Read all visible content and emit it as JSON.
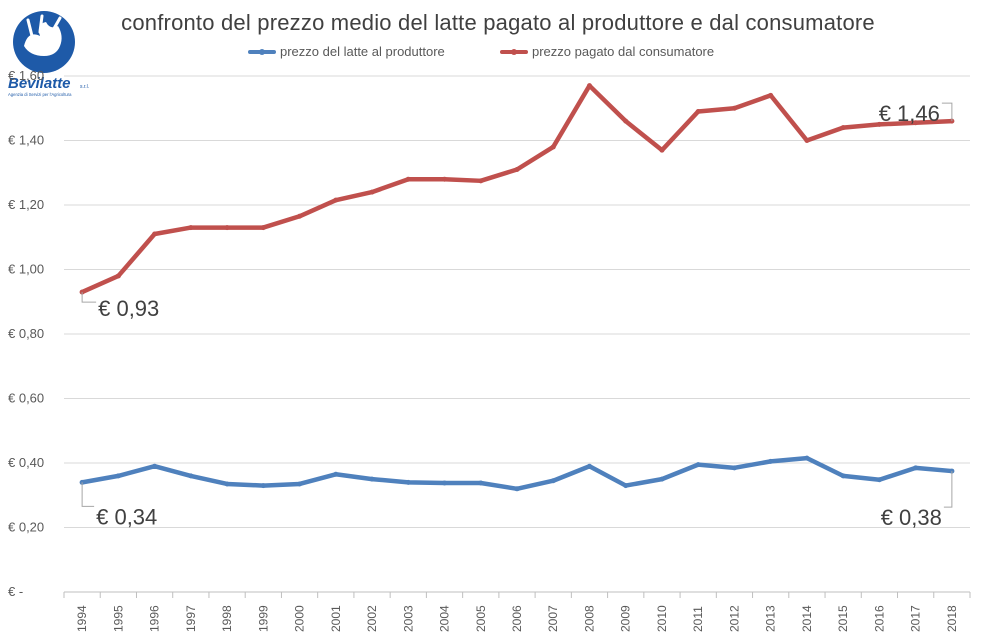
{
  "chart_data": {
    "type": "line",
    "title": "confronto del prezzo medio del latte pagato al produttore e dal consumatore",
    "categories": [
      "1994",
      "1995",
      "1996",
      "1997",
      "1998",
      "1999",
      "2000",
      "2001",
      "2002",
      "2003",
      "2004",
      "2005",
      "2006",
      "2007",
      "2008",
      "2009",
      "2010",
      "2011",
      "2012",
      "2013",
      "2014",
      "2015",
      "2016",
      "2017",
      "2018"
    ],
    "series": [
      {
        "name": "prezzo del latte al produttore",
        "color": "#4F81BD",
        "values": [
          0.34,
          0.36,
          0.39,
          0.36,
          0.335,
          0.33,
          0.335,
          0.365,
          0.35,
          0.34,
          0.338,
          0.338,
          0.32,
          0.345,
          0.39,
          0.33,
          0.35,
          0.395,
          0.385,
          0.405,
          0.415,
          0.36,
          0.348,
          0.385,
          0.375
        ]
      },
      {
        "name": "prezzo pagato dal consumatore",
        "color": "#C0504D",
        "values": [
          0.93,
          0.98,
          1.11,
          1.13,
          1.13,
          1.13,
          1.165,
          1.215,
          1.24,
          1.28,
          1.28,
          1.275,
          1.31,
          1.38,
          1.57,
          1.46,
          1.37,
          1.49,
          1.5,
          1.54,
          1.4,
          1.44,
          1.45,
          1.455,
          1.46
        ]
      }
    ],
    "ylim": [
      0,
      1.6
    ],
    "yticks": [
      0,
      0.2,
      0.4,
      0.6,
      0.8,
      1.0,
      1.2,
      1.4,
      1.6
    ],
    "ytick_labels": [
      "€ -",
      "€ 0,20",
      "€ 0,40",
      "€ 0,60",
      "€ 0,80",
      "€ 1,00",
      "€ 1,20",
      "€ 1,40",
      "€ 1,60"
    ],
    "grid": true,
    "legend_position": "top-center",
    "annotations": [
      {
        "series": 1,
        "index": 0,
        "text": "€ 0,93"
      },
      {
        "series": 1,
        "index": 24,
        "text": "€ 1,46"
      },
      {
        "series": 0,
        "index": 0,
        "text": "€ 0,34"
      },
      {
        "series": 0,
        "index": 24,
        "text": "€ 0,38"
      }
    ]
  },
  "logo": {
    "text": "Bevilatte",
    "suffix": "s.r.l.",
    "tagline": "Agenzia di Servizi per l'Agricoltura"
  }
}
